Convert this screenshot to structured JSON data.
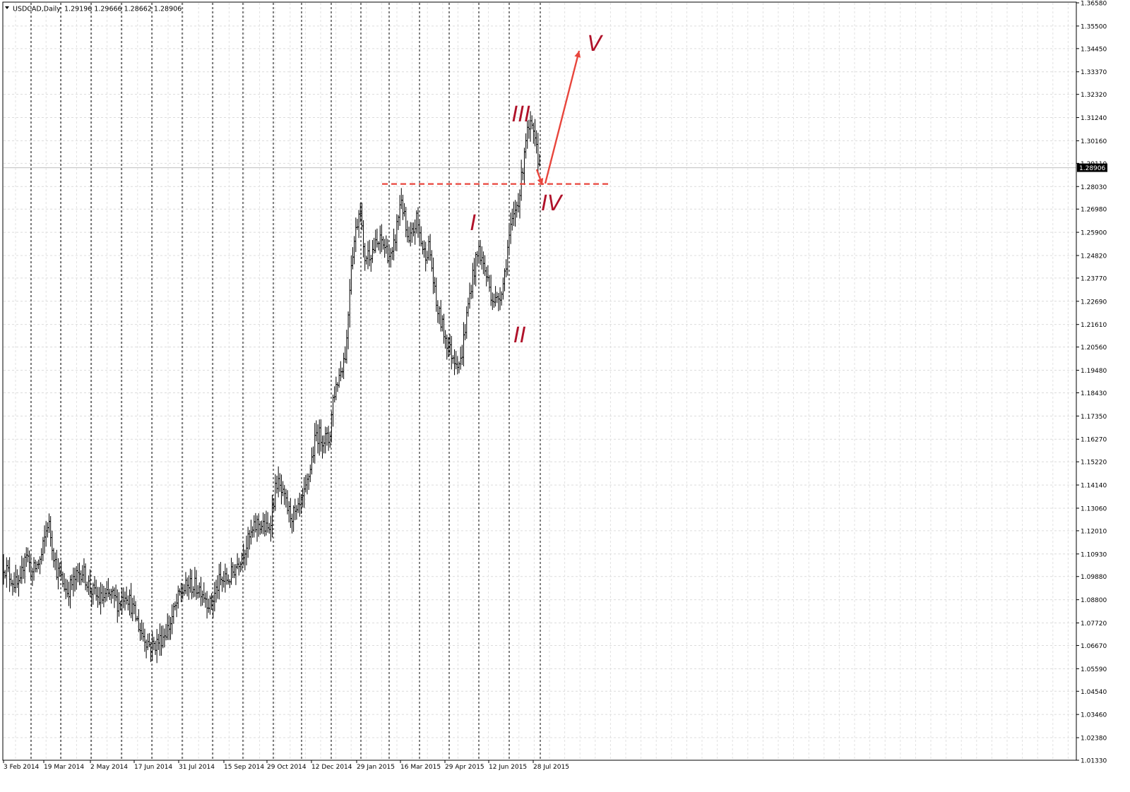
{
  "window": {
    "title": "USDCAD,Daily",
    "ohlc": "1.29196 1.29666 1.28662 1.28906"
  },
  "chart_data": {
    "type": "bar",
    "symbol": "USDCAD",
    "timeframe": "Daily",
    "x_ticks": [
      "3 Feb 2014",
      "19 Mar 2014",
      "2 May 2014",
      "17 Jun 2014",
      "31 Jul 2014",
      "15 Sep 2014",
      "29 Oct 2014",
      "12 Dec 2014",
      "29 Jan 2015",
      "16 Mar 2015",
      "29 Apr 2015",
      "12 Jun 2015",
      "28 Jul 2015"
    ],
    "y_ticks": [
      "1.36580",
      "1.35500",
      "1.34450",
      "1.33370",
      "1.32320",
      "1.31240",
      "1.30160",
      "1.29110",
      "1.28030",
      "1.26980",
      "1.25900",
      "1.24820",
      "1.23770",
      "1.22690",
      "1.21610",
      "1.20560",
      "1.19480",
      "1.18430",
      "1.17350",
      "1.16270",
      "1.15220",
      "1.14140",
      "1.13060",
      "1.12010",
      "1.10930",
      "1.09880",
      "1.08800",
      "1.07720",
      "1.06670",
      "1.05590",
      "1.04540",
      "1.03460",
      "1.02380",
      "1.01330"
    ],
    "ylim": [
      1.0133,
      1.3658
    ],
    "current_price": "1.28906",
    "grid": true,
    "series": [
      {
        "values": [
          {
            "date": "3 Feb 2014",
            "close": 1.105
          },
          {
            "date": "19 Mar 2014",
            "close": 1.118
          },
          {
            "date": "2 May 2014",
            "close": 1.097
          },
          {
            "date": "17 Jun 2014",
            "close": 1.068
          },
          {
            "date": "31 Jul 2014",
            "close": 1.093
          },
          {
            "date": "15 Sep 2014",
            "close": 1.112
          },
          {
            "date": "29 Oct 2014",
            "close": 1.136
          },
          {
            "date": "12 Dec 2014",
            "close": 1.162
          },
          {
            "date": "29 Jan 2015",
            "close": 1.258
          },
          {
            "date": "16 Mar 2015",
            "close": 1.267
          },
          {
            "date": "29 Apr 2015",
            "close": 1.202
          },
          {
            "date": "12 Jun 2015",
            "close": 1.233
          },
          {
            "date": "28 Jul 2015",
            "close": 1.289
          }
        ]
      }
    ],
    "annotations": {
      "wave_labels": [
        "I",
        "II",
        "III",
        "IV",
        "V"
      ],
      "resistance_level": 1.2815,
      "projection_target": 1.344,
      "color": "#e8453c",
      "label_color": "#b0122a"
    }
  }
}
